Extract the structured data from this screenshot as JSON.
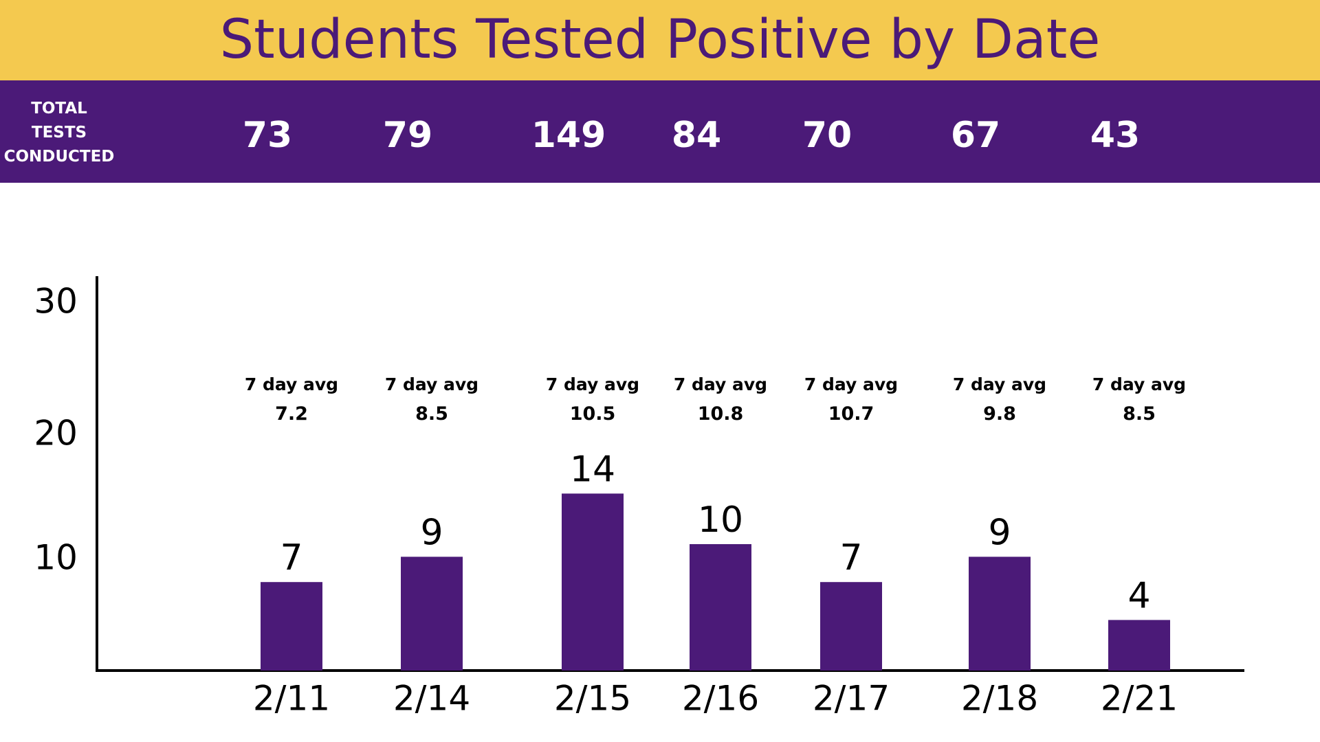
{
  "header": {
    "title": "Students Tested Positive by Date",
    "tests_label_lines": [
      "TOTAL",
      "TESTS",
      "CONDUCTED"
    ]
  },
  "colors": {
    "title_band": "#F4C94F",
    "accent_purple": "#4B1A78",
    "text_dark": "#000000"
  },
  "chart_data": {
    "type": "bar",
    "categories": [
      "2/11",
      "2/14",
      "2/15",
      "2/16",
      "2/17",
      "2/18",
      "2/21"
    ],
    "values": [
      7,
      9,
      14,
      10,
      7,
      9,
      4
    ],
    "total_tests": [
      73,
      79,
      149,
      84,
      70,
      67,
      43
    ],
    "avg_label": "7 day avg",
    "seven_day_avg": [
      "7.2",
      "8.5",
      "10.5",
      "10.8",
      "10.7",
      "9.8",
      "8.5"
    ],
    "yticks": [
      10,
      20,
      30
    ],
    "title": "Students Tested Positive by Date",
    "xlabel": "",
    "ylabel": "",
    "grid": false
  }
}
